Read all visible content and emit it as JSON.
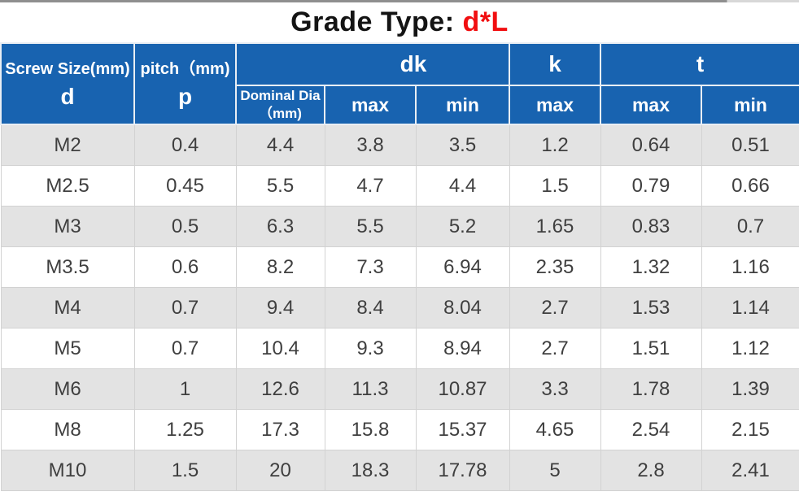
{
  "title": {
    "prefix": "Grade Type:",
    "value": "d*L"
  },
  "colors": {
    "header_bg": "#1863b0",
    "header_text": "#ffffff",
    "title_accent_red": "#f10e10",
    "row_alt_bg": "#e3e3e3",
    "row_bg": "#ffffff",
    "body_text": "#3f3f3f",
    "grid_border": "#d2d2d2"
  },
  "header": {
    "screw_size_label": "Screw Size(mm)",
    "screw_size_symbol": "d",
    "pitch_label": "pitch（mm)",
    "pitch_symbol": "p",
    "group_dk": "dk",
    "group_k": "k",
    "group_t": "t",
    "dominal_line1": "Dominal Dia",
    "dominal_line2": "（mm)",
    "dk_max": "max",
    "dk_min": "min",
    "k_max": "max",
    "t_max": "max",
    "t_min": "min"
  },
  "chart_data": {
    "type": "table",
    "title": "Grade Type: d*L",
    "column_groups": [
      {
        "label": "Screw Size(mm)",
        "columns": [
          "d"
        ]
      },
      {
        "label": "pitch（mm)",
        "columns": [
          "p"
        ]
      },
      {
        "label": "dk",
        "columns": [
          "Dominal Dia（mm)",
          "max",
          "min"
        ]
      },
      {
        "label": "k",
        "columns": [
          "max"
        ]
      },
      {
        "label": "t",
        "columns": [
          "max",
          "min"
        ]
      }
    ],
    "rows": [
      [
        "M2",
        "0.4",
        "4.4",
        "3.8",
        "3.5",
        "1.2",
        "0.64",
        "0.51"
      ],
      [
        "M2.5",
        "0.45",
        "5.5",
        "4.7",
        "4.4",
        "1.5",
        "0.79",
        "0.66"
      ],
      [
        "M3",
        "0.5",
        "6.3",
        "5.5",
        "5.2",
        "1.65",
        "0.83",
        "0.7"
      ],
      [
        "M3.5",
        "0.6",
        "8.2",
        "7.3",
        "6.94",
        "2.35",
        "1.32",
        "1.16"
      ],
      [
        "M4",
        "0.7",
        "9.4",
        "8.4",
        "8.04",
        "2.7",
        "1.53",
        "1.14"
      ],
      [
        "M5",
        "0.7",
        "10.4",
        "9.3",
        "8.94",
        "2.7",
        "1.51",
        "1.12"
      ],
      [
        "M6",
        "1",
        "12.6",
        "11.3",
        "10.87",
        "3.3",
        "1.78",
        "1.39"
      ],
      [
        "M8",
        "1.25",
        "17.3",
        "15.8",
        "15.37",
        "4.65",
        "2.54",
        "2.15"
      ],
      [
        "M10",
        "1.5",
        "20",
        "18.3",
        "17.78",
        "5",
        "2.8",
        "2.41"
      ]
    ]
  }
}
